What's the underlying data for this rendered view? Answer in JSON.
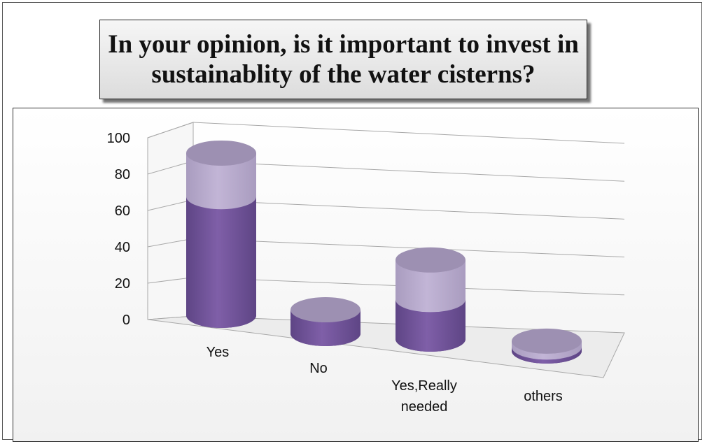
{
  "title": "In your opinion, is it important to invest in\nsustainablity of the water cisterns?",
  "colors": {
    "lower_body": "#7f5fa8",
    "lower_body_dark": "#5e4585",
    "upper_body": "#c2b5d6",
    "top_cap": "#9d90b2",
    "grid": "#a8a8a8"
  },
  "chart_data": {
    "type": "bar",
    "style": "3d-cylinder",
    "title": "In your opinion, is it important to invest in\nsustainablity of the water cisterns?",
    "categories": [
      "Yes",
      "No",
      "Yes,Really needed",
      "others"
    ],
    "category_lines": [
      [
        "Yes"
      ],
      [
        "No"
      ],
      [
        "Yes,Really",
        "needed"
      ],
      [
        "others"
      ]
    ],
    "series": [
      {
        "values": [
          60,
          12,
          20,
          2
        ]
      },
      {
        "values": [
          22,
          0,
          20,
          3
        ]
      }
    ],
    "totals": [
      82,
      12,
      40,
      5
    ],
    "ylim": [
      0,
      100
    ],
    "yticks": [
      0,
      20,
      40,
      60,
      80,
      100
    ],
    "grid": true,
    "legend": "none"
  }
}
